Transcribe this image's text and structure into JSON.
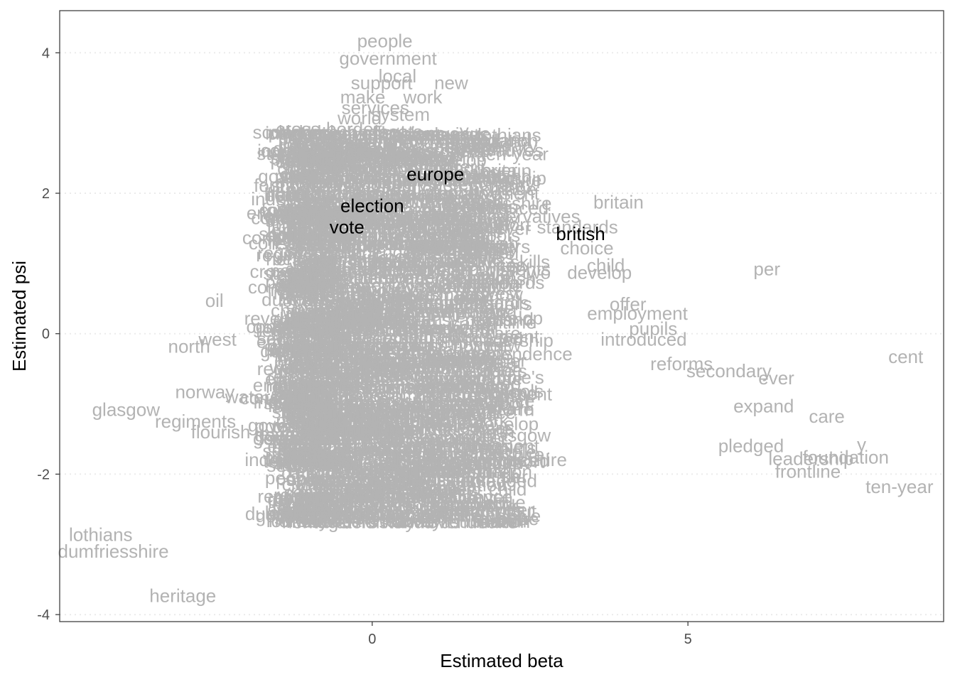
{
  "chart_data": {
    "type": "scatter",
    "title": "",
    "xlabel": "Estimated beta",
    "ylabel": "Estimated psi",
    "xlim": [
      -4.95,
      9.05
    ],
    "ylim": [
      -4.1,
      4.6
    ],
    "x_ticks": [
      0,
      5
    ],
    "y_ticks": [
      -4,
      -2,
      0,
      2,
      4
    ],
    "x_tick_labels": [
      "0",
      "5"
    ],
    "y_tick_labels": [
      "-4",
      "-2",
      "0",
      "2",
      "4"
    ],
    "grid": {
      "horizontal_major": true,
      "vertical": false,
      "style": "dotted"
    },
    "colors": {
      "muted_words": "#b3b3b3",
      "highlighted_words": "#000000",
      "panel_border": "#333333",
      "grid": "#ebebeb"
    },
    "highlighted": [
      {
        "label": "europe",
        "x": 1.0,
        "y": 2.25
      },
      {
        "label": "election",
        "x": 0.0,
        "y": 1.8
      },
      {
        "label": "vote",
        "x": -0.4,
        "y": 1.5
      },
      {
        "label": "british",
        "x": 3.3,
        "y": 1.4
      }
    ],
    "points": [
      {
        "label": "people",
        "x": 0.2,
        "y": 4.15
      },
      {
        "label": "government",
        "x": 0.25,
        "y": 3.9
      },
      {
        "label": "local",
        "x": 0.4,
        "y": 3.65
      },
      {
        "label": "new",
        "x": 1.25,
        "y": 3.55
      },
      {
        "label": "support",
        "x": 0.15,
        "y": 3.55
      },
      {
        "label": "work",
        "x": 0.8,
        "y": 3.35
      },
      {
        "label": "make",
        "x": -0.15,
        "y": 3.35
      },
      {
        "label": "services",
        "x": 0.05,
        "y": 3.2
      },
      {
        "label": "system",
        "x": 0.45,
        "y": 3.1
      },
      {
        "label": "world",
        "x": -0.2,
        "y": 3.05
      },
      {
        "label": "britain",
        "x": 3.9,
        "y": 1.85
      },
      {
        "label": "scotland",
        "x": -1.35,
        "y": 2.85
      },
      {
        "label": "schools",
        "x": 1.5,
        "y": 2.65
      },
      {
        "label": "people's",
        "x": -0.95,
        "y": 2.75
      },
      {
        "label": "share",
        "x": -0.95,
        "y": 2.5
      },
      {
        "label": "scots",
        "x": -0.8,
        "y": 2.35
      },
      {
        "label": "reform",
        "x": 1.9,
        "y": 2.2
      },
      {
        "label": "independence",
        "x": -1.0,
        "y": 1.9
      },
      {
        "label": "west",
        "x": -1.15,
        "y": 1.78
      },
      {
        "label": "conservatives",
        "x": 2.4,
        "y": 1.65
      },
      {
        "label": "standards",
        "x": 3.25,
        "y": 1.5
      },
      {
        "label": "scottish",
        "x": -1.3,
        "y": 1.4
      },
      {
        "label": "choice",
        "x": 3.4,
        "y": 1.2
      },
      {
        "label": "child",
        "x": 3.7,
        "y": 0.95
      },
      {
        "label": "skills",
        "x": 2.5,
        "y": 1.0
      },
      {
        "label": "develop",
        "x": 3.6,
        "y": 0.85
      },
      {
        "label": "two",
        "x": 2.6,
        "y": 0.85
      },
      {
        "label": "per",
        "x": 6.25,
        "y": 0.9
      },
      {
        "label": "oil",
        "x": -2.5,
        "y": 0.45
      },
      {
        "label": "offer",
        "x": 4.05,
        "y": 0.4
      },
      {
        "label": "employment",
        "x": 4.2,
        "y": 0.27
      },
      {
        "label": "revenue",
        "x": -1.5,
        "y": 0.2
      },
      {
        "label": "pupils",
        "x": 4.45,
        "y": 0.05
      },
      {
        "label": "introduced",
        "x": 4.3,
        "y": -0.1
      },
      {
        "label": "north",
        "x": -2.9,
        "y": -0.2
      },
      {
        "label": "west",
        "x": -2.45,
        "y": -0.1
      },
      {
        "label": "cent",
        "x": 8.45,
        "y": -0.35
      },
      {
        "label": "reforms",
        "x": 4.9,
        "y": -0.45
      },
      {
        "label": "secondary",
        "x": 5.65,
        "y": -0.55
      },
      {
        "label": "ever",
        "x": 6.4,
        "y": -0.65
      },
      {
        "label": "norway",
        "x": -2.65,
        "y": -0.85
      },
      {
        "label": "waters",
        "x": -1.9,
        "y": -0.92
      },
      {
        "label": "glasgow",
        "x": -3.9,
        "y": -1.1
      },
      {
        "label": "expand",
        "x": 6.2,
        "y": -1.05
      },
      {
        "label": "regiments",
        "x": -2.8,
        "y": -1.27
      },
      {
        "label": "care",
        "x": 7.2,
        "y": -1.2
      },
      {
        "label": "flourish",
        "x": -2.4,
        "y": -1.42
      },
      {
        "label": "pledged",
        "x": 6.0,
        "y": -1.62
      },
      {
        "label": "frontline",
        "x": 6.9,
        "y": -1.98
      },
      {
        "label": "leadership",
        "x": 6.95,
        "y": -1.8
      },
      {
        "label": "foundation",
        "x": 7.5,
        "y": -1.78
      },
      {
        "label": "y",
        "x": 7.75,
        "y": -1.6
      },
      {
        "label": "ten-year",
        "x": 8.35,
        "y": -2.2
      },
      {
        "label": "two",
        "x": -0.95,
        "y": -2.55
      },
      {
        "label": "out",
        "x": 2.4,
        "y": -2.55
      },
      {
        "label": "cross-border",
        "x": 1.5,
        "y": -1.85
      },
      {
        "label": "lothians",
        "x": -4.3,
        "y": -2.88
      },
      {
        "label": "dumfriesshire",
        "x": -4.1,
        "y": -3.12
      },
      {
        "label": "heritage",
        "x": -3.0,
        "y": -3.75
      }
    ],
    "background_cloud": {
      "label": "dense overlapping word labels",
      "x_range": [
        -1.2,
        2.3
      ],
      "y_range": [
        -2.7,
        2.9
      ]
    }
  }
}
